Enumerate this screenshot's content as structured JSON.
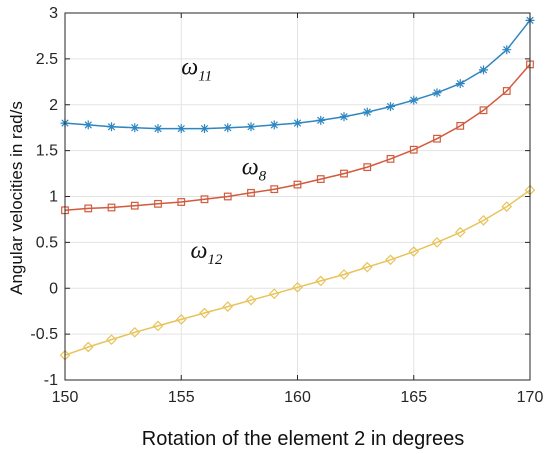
{
  "chart_data": {
    "type": "line",
    "title": "",
    "xlabel": "Rotation of the element 2 in degrees",
    "ylabel": "Angular velocities in rad/s",
    "xlim": [
      150,
      170
    ],
    "ylim": [
      -1,
      3
    ],
    "grid": true,
    "legend": "none",
    "x_ticks": [
      "150",
      "155",
      "160",
      "165",
      "170"
    ],
    "y_ticks": [
      "-1",
      "-0.5",
      "0",
      "0.5",
      "1",
      "1.5",
      "2",
      "2.5",
      "3"
    ],
    "x": [
      150,
      151,
      152,
      153,
      154,
      155,
      156,
      157,
      158,
      159,
      160,
      161,
      162,
      163,
      164,
      165,
      166,
      167,
      168,
      169,
      170
    ],
    "series": [
      {
        "key": "w11",
        "annotation": "ω",
        "annotation_sub": "11",
        "marker": "asterisk",
        "color": "#2E86C1",
        "values": [
          1.8,
          1.78,
          1.76,
          1.75,
          1.74,
          1.74,
          1.74,
          1.75,
          1.76,
          1.78,
          1.8,
          1.83,
          1.87,
          1.92,
          1.98,
          2.05,
          2.13,
          2.23,
          2.38,
          2.6,
          2.92
        ]
      },
      {
        "key": "w8",
        "annotation": "ω",
        "annotation_sub": "8",
        "marker": "square",
        "color": "#D35A3C",
        "values": [
          0.85,
          0.87,
          0.88,
          0.9,
          0.92,
          0.94,
          0.97,
          1.0,
          1.04,
          1.08,
          1.13,
          1.19,
          1.25,
          1.32,
          1.41,
          1.51,
          1.63,
          1.77,
          1.94,
          2.15,
          2.44
        ]
      },
      {
        "key": "w12",
        "annotation": "ω",
        "annotation_sub": "12",
        "marker": "diamond",
        "color": "#E8C35A",
        "values": [
          -0.73,
          -0.64,
          -0.56,
          -0.48,
          -0.41,
          -0.34,
          -0.27,
          -0.2,
          -0.13,
          -0.06,
          0.01,
          0.08,
          0.15,
          0.23,
          0.31,
          0.4,
          0.5,
          0.61,
          0.74,
          0.89,
          1.07
        ]
      }
    ]
  }
}
